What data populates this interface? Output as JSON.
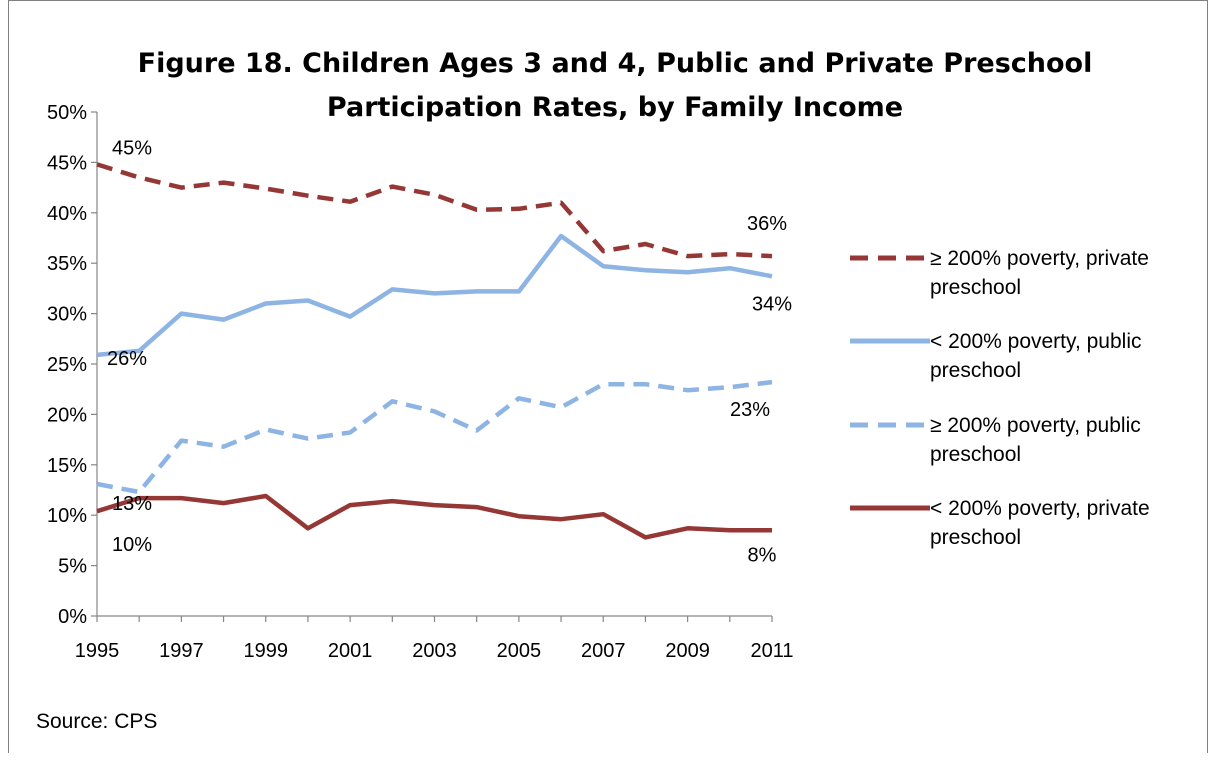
{
  "source": "Source: CPS",
  "chart_data": {
    "type": "line",
    "title": "Figure 18. Children Ages 3 and 4, Public and Private Preschool Participation Rates, by Family Income",
    "title_lines": [
      "Figure 18. Children Ages 3 and 4, Public and Private Preschool",
      "Participation Rates, by Family Income"
    ],
    "x": [
      1995,
      1996,
      1997,
      1998,
      1999,
      2000,
      2001,
      2002,
      2003,
      2004,
      2005,
      2006,
      2007,
      2008,
      2009,
      2010,
      2011
    ],
    "x_tick_labels": [
      "1995",
      "1997",
      "1999",
      "2001",
      "2003",
      "2005",
      "2007",
      "2009",
      "2011"
    ],
    "y_tick_labels": [
      "0%",
      "5%",
      "10%",
      "15%",
      "20%",
      "25%",
      "30%",
      "35%",
      "40%",
      "45%",
      "50%"
    ],
    "ylim": [
      0,
      50
    ],
    "grid": false,
    "legend_position": "right",
    "series": [
      {
        "name": "≥ 200% poverty, private preschool",
        "name_lines": [
          "≥ 200% poverty, private",
          "preschool"
        ],
        "color": "#953735",
        "style": "dashed",
        "values": [
          44.8,
          43.5,
          42.5,
          43.0,
          42.4,
          41.7,
          41.1,
          42.6,
          41.8,
          40.3,
          40.4,
          41.0,
          36.2,
          36.9,
          35.7,
          35.9,
          35.7
        ],
        "labels": [
          {
            "x": 1995,
            "text": "45%"
          },
          {
            "x": 2011,
            "text": "36%"
          }
        ]
      },
      {
        "name": "< 200% poverty, public preschool",
        "name_lines": [
          "< 200% poverty, public",
          "preschool"
        ],
        "color": "#8EB4E3",
        "style": "solid",
        "values": [
          25.9,
          26.3,
          30.0,
          29.4,
          31.0,
          31.3,
          29.7,
          32.4,
          32.0,
          32.2,
          32.2,
          37.7,
          34.7,
          34.3,
          34.1,
          34.5,
          33.7
        ],
        "labels": [
          {
            "x": 1995,
            "text": "26%"
          },
          {
            "x": 2011,
            "text": "34%"
          }
        ]
      },
      {
        "name": "≥ 200% poverty, public preschool",
        "name_lines": [
          "≥ 200% poverty, public",
          "preschool"
        ],
        "color": "#8EB4E3",
        "style": "dashed",
        "values": [
          13.1,
          12.3,
          17.4,
          16.8,
          18.5,
          17.6,
          18.2,
          21.3,
          20.3,
          18.4,
          21.6,
          20.7,
          23.0,
          23.0,
          22.4,
          22.7,
          23.2
        ],
        "labels": [
          {
            "x": 1995,
            "text": "13%"
          },
          {
            "x": 2011,
            "text": "23%"
          }
        ]
      },
      {
        "name": "< 200% poverty, private preschool",
        "name_lines": [
          "< 200% poverty, private",
          "preschool"
        ],
        "color": "#953735",
        "style": "solid",
        "values": [
          10.4,
          11.7,
          11.7,
          11.2,
          11.9,
          8.7,
          11.0,
          11.4,
          11.0,
          10.8,
          9.9,
          9.6,
          10.1,
          7.8,
          8.7,
          8.5,
          8.5
        ],
        "labels": [
          {
            "x": 1995,
            "text": "10%"
          },
          {
            "x": 2011,
            "text": "8%"
          }
        ]
      }
    ]
  }
}
